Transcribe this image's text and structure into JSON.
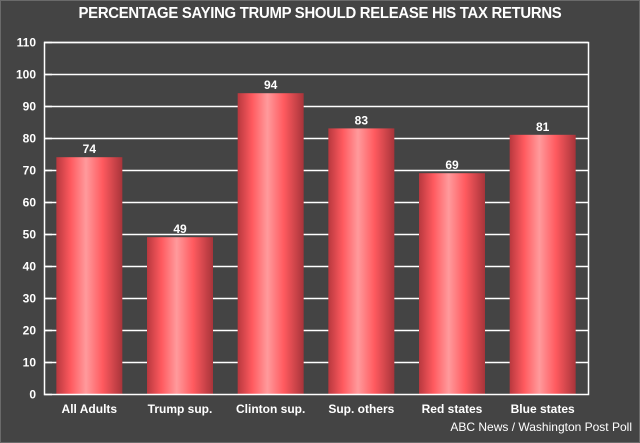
{
  "chart_data": {
    "type": "bar",
    "title": "PERCENTAGE SAYING TRUMP SHOULD RELEASE HIS TAX RETURNS",
    "categories": [
      "All Adults",
      "Trump sup.",
      "Clinton sup.",
      "Sup. others",
      "Red states",
      "Blue states"
    ],
    "values": [
      74,
      49,
      94,
      83,
      69,
      81
    ],
    "data_labels": [
      "74",
      "49",
      "94",
      "83",
      "69",
      "81"
    ],
    "xlabel": "",
    "ylabel": "",
    "ylim": [
      0,
      110
    ],
    "yticks": [
      0,
      10,
      20,
      30,
      40,
      50,
      60,
      70,
      80,
      90,
      100,
      110
    ],
    "grid": true,
    "legend": null,
    "source": "ABC News / Washington Post Poll",
    "colors": {
      "background": "#444444",
      "bar_edge": "#b8383e",
      "bar_mid": "#ff5a5f",
      "bar_highlight": "#ff9a9c",
      "grid": "#ffffff",
      "text": "#ffffff"
    }
  }
}
